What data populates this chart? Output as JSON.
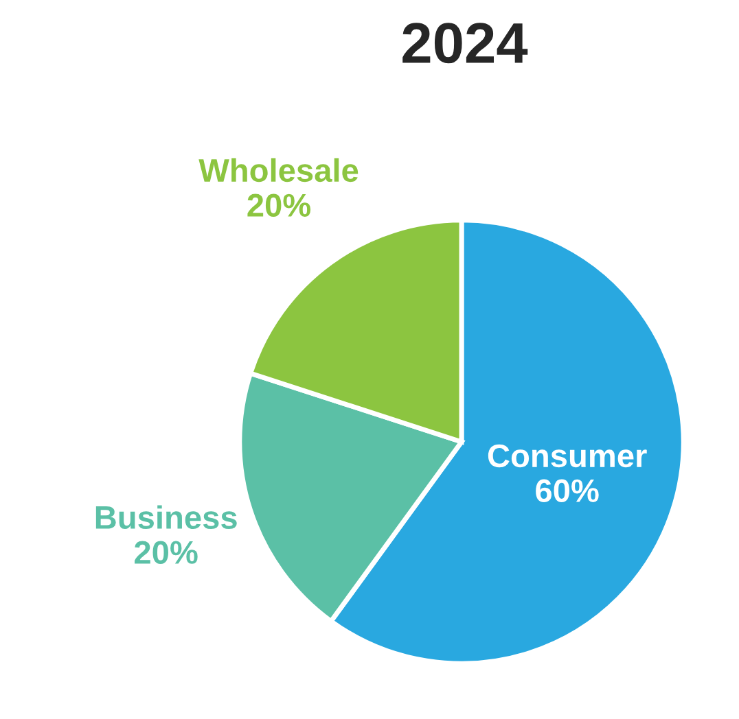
{
  "chart_data": {
    "type": "pie",
    "title": "2024",
    "categories": [
      "Consumer",
      "Business",
      "Wholesale"
    ],
    "values": [
      60,
      20,
      20
    ],
    "value_labels": [
      "60%",
      "20%",
      "20%"
    ],
    "colors": [
      "#29a8e0",
      "#5bc0a6",
      "#8cc540"
    ]
  }
}
